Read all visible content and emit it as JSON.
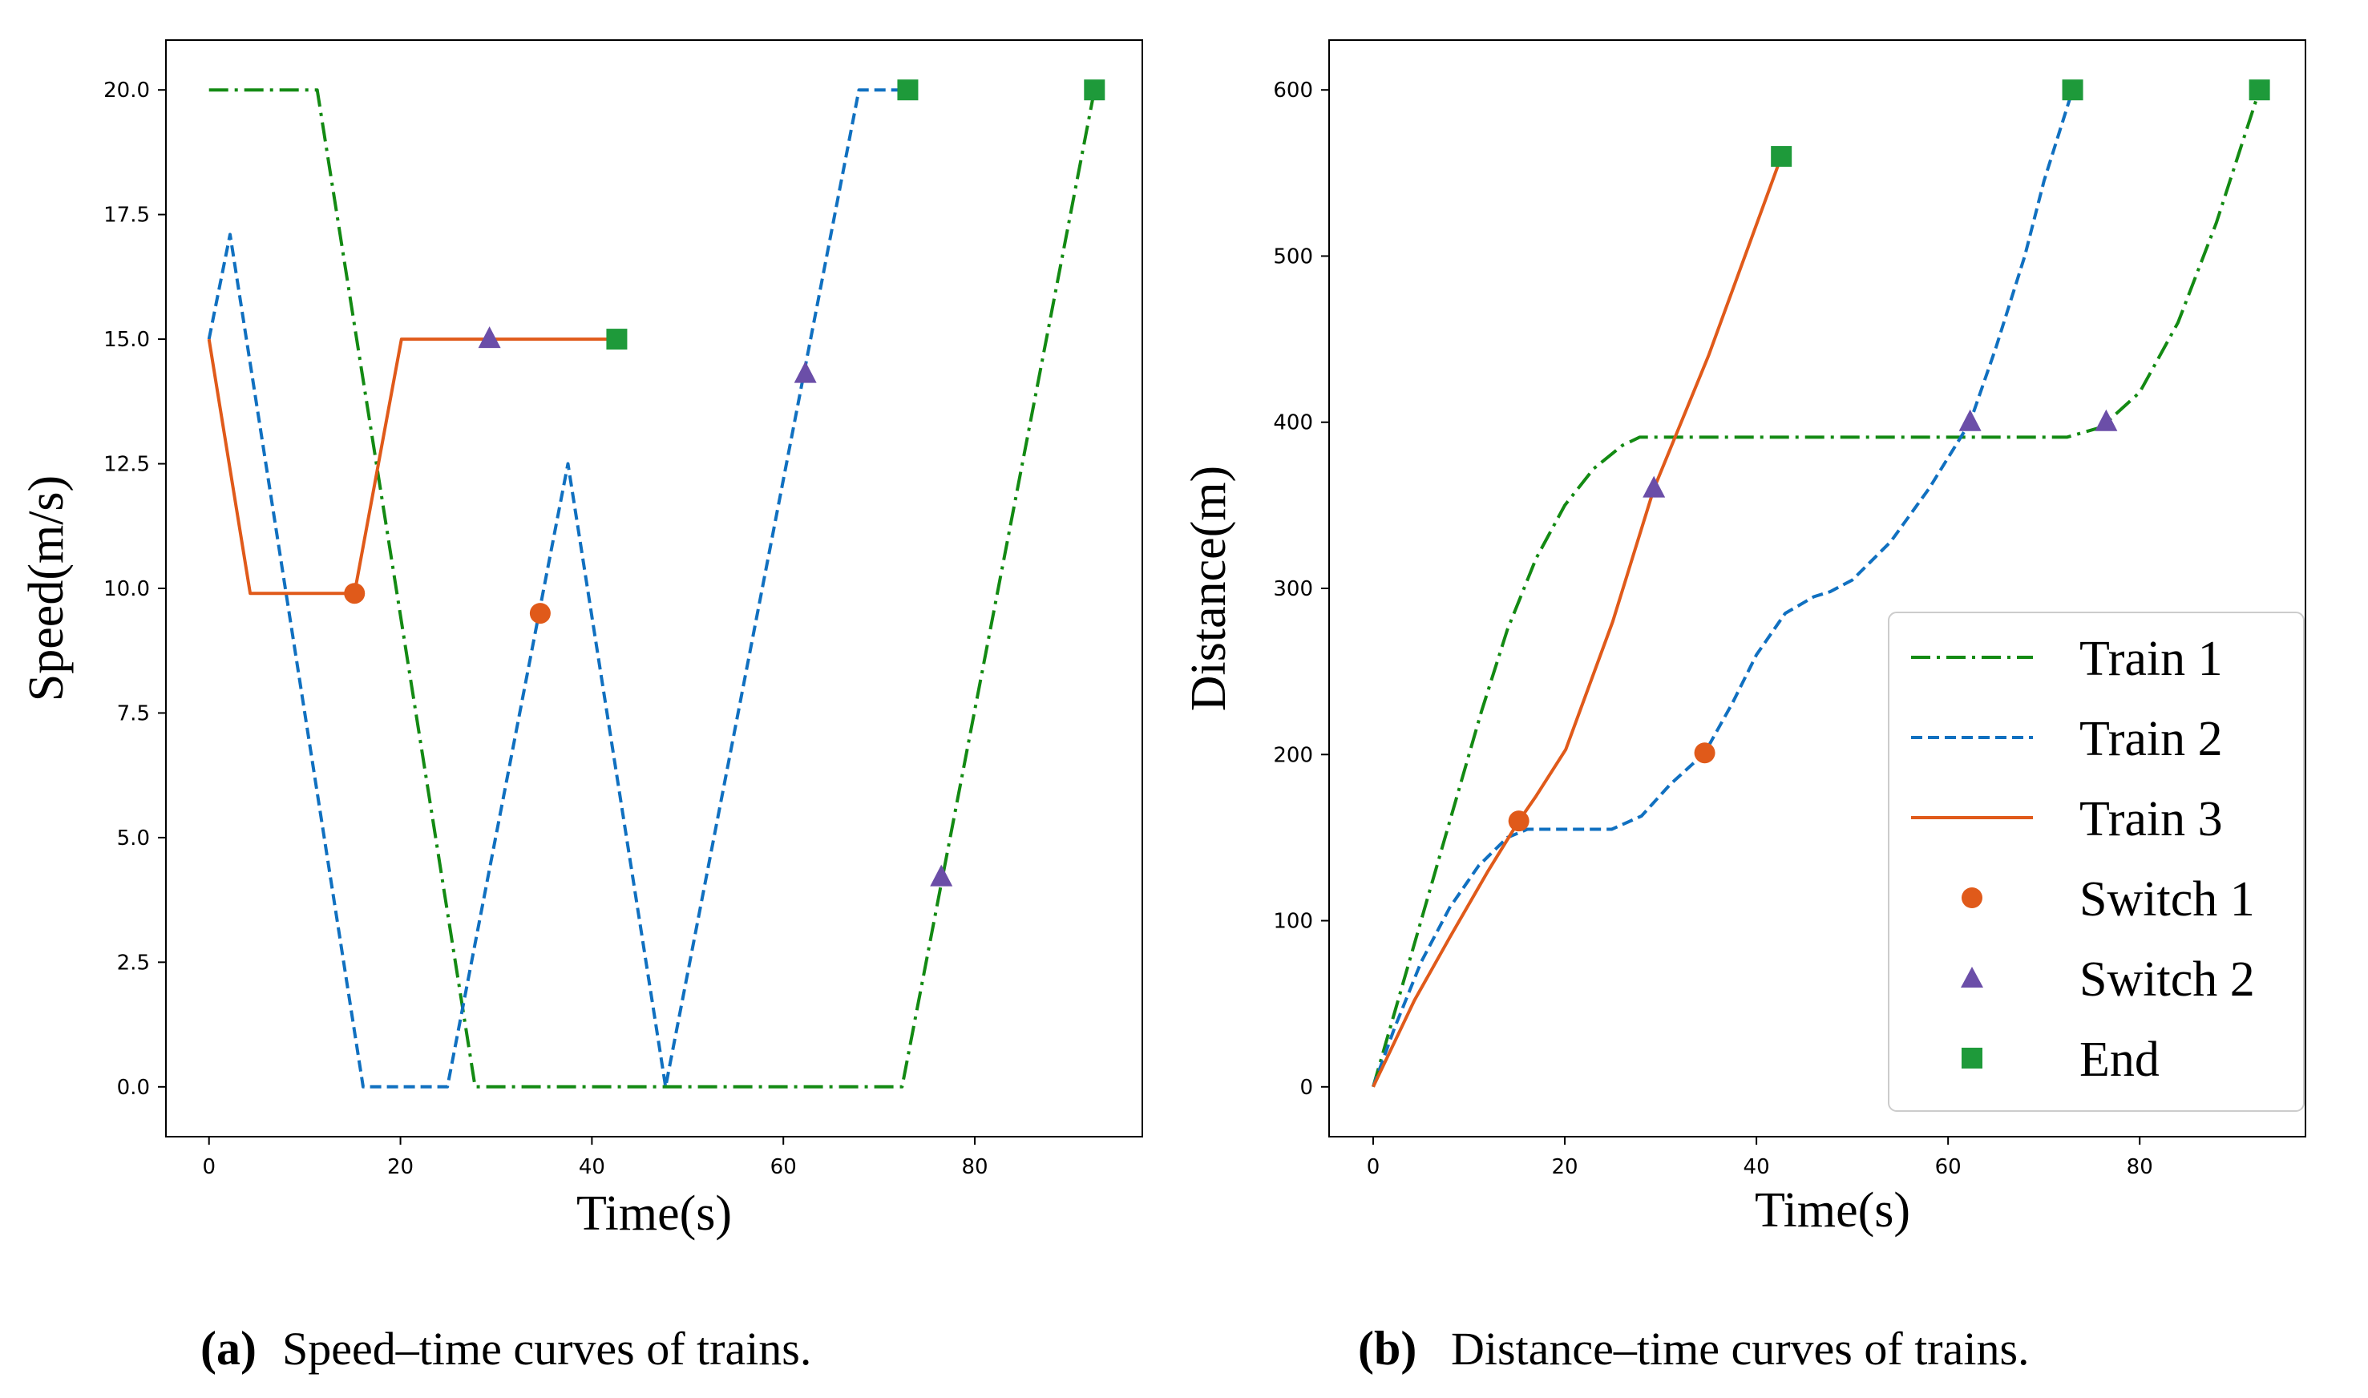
{
  "colors": {
    "train1": "#138a13",
    "train2": "#1070c0",
    "train3": "#e05a1a",
    "switch1": "#e05a1a",
    "switch2": "#6b4ea8",
    "end": "#1e9a3a"
  },
  "legend": {
    "entries": [
      "Train 1",
      "Train 2",
      "Train 3",
      "Switch 1",
      "Switch 2",
      "End"
    ]
  },
  "captions": {
    "a": {
      "label": "(a)",
      "text": "Speed–time curves of trains."
    },
    "b": {
      "label": "(b)",
      "text": "Distance–time curves of trains."
    }
  },
  "chart_data": [
    {
      "type": "line",
      "id": "speed",
      "xlabel": "Time(s)",
      "ylabel": "Speed(m/s)",
      "xlim": [
        -4.5,
        97.5
      ],
      "ylim": [
        -1.0,
        21.0
      ],
      "xticks": [
        0,
        20,
        40,
        60,
        80
      ],
      "xtick_labels": [
        "0",
        "20",
        "40",
        "60",
        "80"
      ],
      "yticks": [
        0,
        2.5,
        5,
        7.5,
        10,
        12.5,
        15,
        17.5,
        20
      ],
      "ytick_labels": [
        "0.0",
        "2.5",
        "5.0",
        "7.5",
        "10.0",
        "12.5",
        "15.0",
        "17.5",
        "20.0"
      ],
      "series": [
        {
          "name": "Train 1",
          "style": "dashdot",
          "x": [
            0,
            11.3,
            27.8,
            72.4,
            92.5
          ],
          "y": [
            20,
            20,
            0,
            0,
            20
          ]
        },
        {
          "name": "Train 2",
          "style": "dashed",
          "x": [
            0,
            2.2,
            16.1,
            24.9,
            37.5,
            47.7,
            67.9,
            73.0
          ],
          "y": [
            15,
            17.1,
            0,
            0,
            12.5,
            0,
            20,
            20
          ]
        },
        {
          "name": "Train 3",
          "style": "solid",
          "x": [
            0,
            4.3,
            15.2,
            20.1,
            42.6
          ],
          "y": [
            15,
            9.9,
            9.9,
            15,
            15
          ]
        }
      ],
      "markers": [
        {
          "name": "Switch 1",
          "shape": "circle",
          "points": [
            [
              15.2,
              9.9
            ],
            [
              34.6,
              9.5
            ]
          ]
        },
        {
          "name": "Switch 2",
          "shape": "triangle",
          "points": [
            [
              29.3,
              15.0
            ],
            [
              62.3,
              14.3
            ],
            [
              76.5,
              4.2
            ]
          ]
        },
        {
          "name": "End",
          "shape": "square",
          "points": [
            [
              42.6,
              15.0
            ],
            [
              73.0,
              20.0
            ],
            [
              92.5,
              20.0
            ]
          ]
        }
      ]
    },
    {
      "type": "line",
      "id": "distance",
      "xlabel": "Time(s)",
      "ylabel": "Distance(m)",
      "xlim": [
        -4.6,
        97.3
      ],
      "ylim": [
        -30,
        630
      ],
      "xticks": [
        0,
        20,
        40,
        60,
        80
      ],
      "xtick_labels": [
        "0",
        "20",
        "40",
        "60",
        "80"
      ],
      "yticks": [
        0,
        100,
        200,
        300,
        400,
        500,
        600
      ],
      "ytick_labels": [
        "0",
        "100",
        "200",
        "300",
        "400",
        "500",
        "600"
      ],
      "series": [
        {
          "name": "Train 1",
          "style": "dashdot",
          "x": [
            0,
            3,
            6,
            9,
            11.3,
            14,
            17,
            20,
            23,
            26,
            27.8,
            40,
            60,
            72.4,
            76,
            80,
            84,
            88,
            92.5
          ],
          "y": [
            0,
            60,
            120,
            180,
            226,
            275,
            318,
            350,
            372,
            386,
            391,
            391,
            391,
            391,
            397,
            418,
            460,
            520,
            600
          ]
        },
        {
          "name": "Train 2",
          "style": "dashed",
          "x": [
            0,
            2.2,
            5,
            8,
            11,
            14,
            16.1,
            20,
            24.9,
            28,
            31,
            34.6,
            37.5,
            40,
            43,
            46,
            47.7,
            50,
            54,
            58,
            62.3,
            65,
            68,
            70,
            73.0
          ],
          "y": [
            0,
            35,
            75,
            108,
            133,
            150,
            155,
            155,
            155,
            163,
            182,
            201,
            231,
            260,
            285,
            295,
            298,
            305,
            328,
            360,
            400,
            445,
            500,
            545,
            600
          ]
        },
        {
          "name": "Train 3",
          "style": "solid",
          "x": [
            0,
            4.3,
            8,
            12,
            15.2,
            17,
            20.1,
            25,
            29.3,
            35,
            42.6
          ],
          "y": [
            0,
            52,
            90,
            130,
            160,
            175,
            203,
            280,
            360,
            440,
            560
          ]
        }
      ],
      "markers": [
        {
          "name": "Switch 1",
          "shape": "circle",
          "points": [
            [
              15.2,
              160
            ],
            [
              34.6,
              201
            ]
          ]
        },
        {
          "name": "Switch 2",
          "shape": "triangle",
          "points": [
            [
              29.3,
              360
            ],
            [
              62.3,
              400
            ],
            [
              76.5,
              400
            ]
          ]
        },
        {
          "name": "End",
          "shape": "square",
          "points": [
            [
              42.6,
              560
            ],
            [
              73.0,
              600
            ],
            [
              92.5,
              600
            ]
          ]
        }
      ]
    }
  ]
}
